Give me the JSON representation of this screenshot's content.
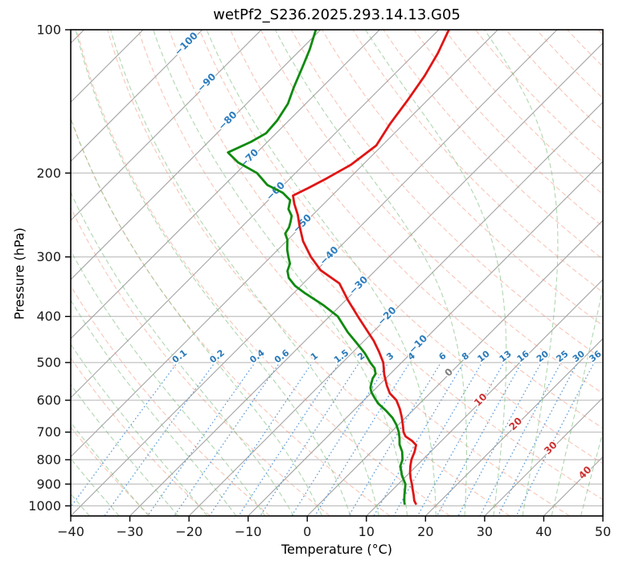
{
  "title": "wetPf2_S236.2025.293.14.13.G05",
  "axes": {
    "xlabel": "Temperature (°C)",
    "ylabel": "Pressure (hPa)",
    "x_ticks": [
      -40,
      -30,
      -20,
      -10,
      0,
      10,
      20,
      30,
      40,
      50
    ],
    "y_ticks": [
      100,
      200,
      300,
      400,
      500,
      600,
      700,
      800,
      900,
      1000
    ],
    "x_range_c": [
      -40,
      50
    ],
    "pressure_range_hpa": [
      100,
      1050
    ]
  },
  "chart_data": {
    "type": "line",
    "subtype": "skew_t_log_p",
    "title": "wetPf2_S236.2025.293.14.13.G05",
    "xlabel": "Temperature (°C)",
    "ylabel": "Pressure (hPa)",
    "series": [
      {
        "name": "temperature",
        "color": "#e01515",
        "points_p_t": [
          [
            100,
            -58.3
          ],
          [
            112,
            -56.2
          ],
          [
            125,
            -54.6
          ],
          [
            140,
            -53.4
          ],
          [
            158,
            -52.3
          ],
          [
            175,
            -51.0
          ],
          [
            192,
            -52.0
          ],
          [
            205,
            -53.8
          ],
          [
            215,
            -55.3
          ],
          [
            223,
            -56.6
          ],
          [
            232,
            -55.0
          ],
          [
            245,
            -52.5
          ],
          [
            258,
            -50.4
          ],
          [
            278,
            -47.2
          ],
          [
            300,
            -43.2
          ],
          [
            320,
            -39.3
          ],
          [
            341,
            -33.9
          ],
          [
            370,
            -29.6
          ],
          [
            400,
            -25.2
          ],
          [
            425,
            -21.7
          ],
          [
            450,
            -18.4
          ],
          [
            475,
            -15.6
          ],
          [
            500,
            -13.1
          ],
          [
            530,
            -10.9
          ],
          [
            560,
            -8.5
          ],
          [
            580,
            -6.8
          ],
          [
            600,
            -4.5
          ],
          [
            625,
            -2.5
          ],
          [
            650,
            -0.8
          ],
          [
            675,
            0.7
          ],
          [
            700,
            2.1
          ],
          [
            715,
            3.2
          ],
          [
            730,
            5.0
          ],
          [
            745,
            6.4
          ],
          [
            770,
            7.3
          ],
          [
            800,
            8.1
          ],
          [
            825,
            9.0
          ],
          [
            850,
            10.0
          ],
          [
            875,
            11.1
          ],
          [
            900,
            12.3
          ],
          [
            925,
            13.4
          ],
          [
            950,
            14.5
          ],
          [
            975,
            15.5
          ],
          [
            990,
            16.3
          ]
        ]
      },
      {
        "name": "dewpoint",
        "color": "#0f8a0f",
        "points_p_t": [
          [
            100,
            -80.8
          ],
          [
            110,
            -78.5
          ],
          [
            120,
            -76.7
          ],
          [
            132,
            -74.8
          ],
          [
            143,
            -73.0
          ],
          [
            155,
            -72.0
          ],
          [
            165,
            -71.7
          ],
          [
            172,
            -72.8
          ],
          [
            181,
            -74.9
          ],
          [
            190,
            -71.5
          ],
          [
            200,
            -66.5
          ],
          [
            212,
            -62.7
          ],
          [
            220,
            -58.8
          ],
          [
            228,
            -56.3
          ],
          [
            238,
            -55.1
          ],
          [
            246,
            -53.4
          ],
          [
            253,
            -52.6
          ],
          [
            260,
            -51.9
          ],
          [
            268,
            -51.5
          ],
          [
            276,
            -50.1
          ],
          [
            290,
            -48.4
          ],
          [
            300,
            -47.0
          ],
          [
            310,
            -45.6
          ],
          [
            321,
            -44.8
          ],
          [
            332,
            -43.4
          ],
          [
            345,
            -41.0
          ],
          [
            357,
            -38.2
          ],
          [
            379,
            -32.9
          ],
          [
            400,
            -28.6
          ],
          [
            432,
            -24.2
          ],
          [
            455,
            -20.9
          ],
          [
            478,
            -17.8
          ],
          [
            500,
            -15.3
          ],
          [
            514,
            -13.6
          ],
          [
            528,
            -12.5
          ],
          [
            540,
            -12.2
          ],
          [
            553,
            -11.6
          ],
          [
            565,
            -11.0
          ],
          [
            577,
            -10.1
          ],
          [
            593,
            -8.6
          ],
          [
            609,
            -7.1
          ],
          [
            630,
            -4.6
          ],
          [
            653,
            -2.2
          ],
          [
            675,
            -0.4
          ],
          [
            700,
            1.3
          ],
          [
            722,
            2.5
          ],
          [
            743,
            3.5
          ],
          [
            770,
            5.2
          ],
          [
            800,
            6.6
          ],
          [
            825,
            7.3
          ],
          [
            845,
            8.3
          ],
          [
            860,
            9.0
          ],
          [
            880,
            10.1
          ],
          [
            900,
            11.2
          ],
          [
            925,
            12.1
          ],
          [
            949,
            12.9
          ],
          [
            975,
            13.8
          ],
          [
            990,
            14.4
          ]
        ]
      }
    ],
    "isotherms": {
      "t_min": -120,
      "t_max": 50,
      "step": 10,
      "color": "#a3a3a3",
      "labels": [
        {
          "t": -100,
          "p": 107
        },
        {
          "t": -90,
          "p": 129
        },
        {
          "t": -80,
          "p": 155
        },
        {
          "t": -70,
          "p": 186
        },
        {
          "t": -60,
          "p": 218
        },
        {
          "t": -50,
          "p": 255
        },
        {
          "t": -40,
          "p": 298
        },
        {
          "t": -30,
          "p": 344
        },
        {
          "t": -20,
          "p": 399
        },
        {
          "t": -10,
          "p": 457
        },
        {
          "t": 0,
          "p": 524
        },
        {
          "t": 10,
          "p": 598
        },
        {
          "t": 20,
          "p": 672
        },
        {
          "t": 30,
          "p": 755
        },
        {
          "t": 40,
          "p": 851
        }
      ],
      "label_color_negative": "#2d7dbf",
      "label_color_zero": "#808080",
      "label_color_positive": "#cc3333"
    },
    "dry_adiabats": {
      "theta_min": -30,
      "theta_max": 190,
      "step": 10,
      "color": "#f0977e"
    },
    "moist_adiabats": {
      "theta_w_min": -40,
      "theta_w_max": 45,
      "step": 5,
      "color": "#7cbd7c"
    },
    "mixing_ratio_lines": {
      "values_g_kg": [
        0.1,
        0.2,
        0.4,
        0.6,
        1,
        1.5,
        2,
        3,
        4,
        6,
        8,
        10,
        13,
        16,
        20,
        25,
        30,
        36
      ],
      "color": "#4f93d8",
      "label_color": "#2a7ab8",
      "label_pressure": 487
    },
    "pressure_gridlines": [
      100,
      200,
      300,
      400,
      500,
      600,
      700,
      800,
      900,
      1000
    ],
    "grid_color": "#b3b3b3"
  }
}
